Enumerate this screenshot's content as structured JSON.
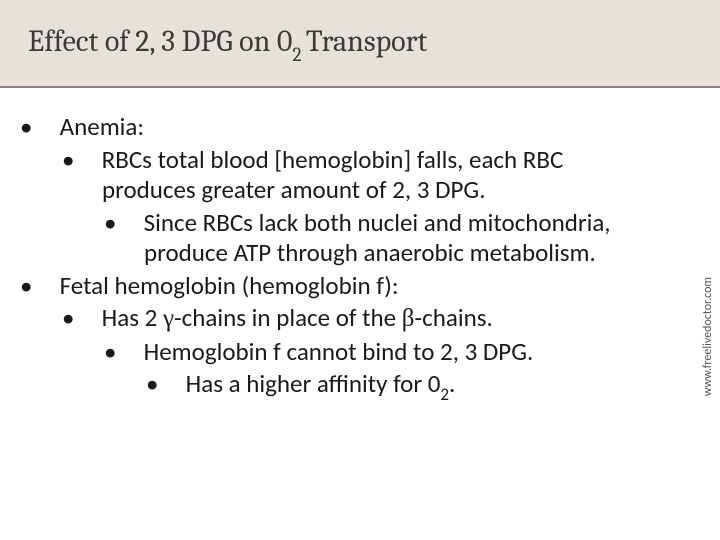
{
  "colors": {
    "header_bg": "#e6e2d9",
    "header_border": "#8a8577",
    "title_color": "#3b3b3b",
    "body_text": "#1a1a1a",
    "side_text": "#555555",
    "page_bg": "#ffffff"
  },
  "typography": {
    "title_font": "Cambria",
    "body_font": "Calibri",
    "title_size_pt": 30,
    "body_size_pt": 25,
    "side_size_pt": 12
  },
  "title": {
    "pre": "Effect of 2, 3 DPG on 0",
    "sub": "2 ",
    "post": "Transport"
  },
  "bullets": [
    {
      "level": 1,
      "text": "Anemia:"
    },
    {
      "level": 2,
      "text": "RBCs total blood [hemoglobin] falls, each RBC produces greater amount of 2, 3 DPG."
    },
    {
      "level": 3,
      "text": "Since RBCs lack both nuclei and mitochondria, produce ATP through anaerobic metabolism."
    },
    {
      "level": 1,
      "text": "Fetal hemoglobin (hemoglobin f):"
    },
    {
      "level": 2,
      "html": "Has 2 <span class='greek'>γ</span>-chains in place of the <span class='greek'>β</span>-chains."
    },
    {
      "level": 3,
      "text": "Hemoglobin f cannot bind to 2, 3 DPG."
    },
    {
      "level": 4,
      "html": "Has a higher affinity for 0<span class='sub2'>2</span>."
    }
  ],
  "side_label": "www.freelivedoctor.com"
}
